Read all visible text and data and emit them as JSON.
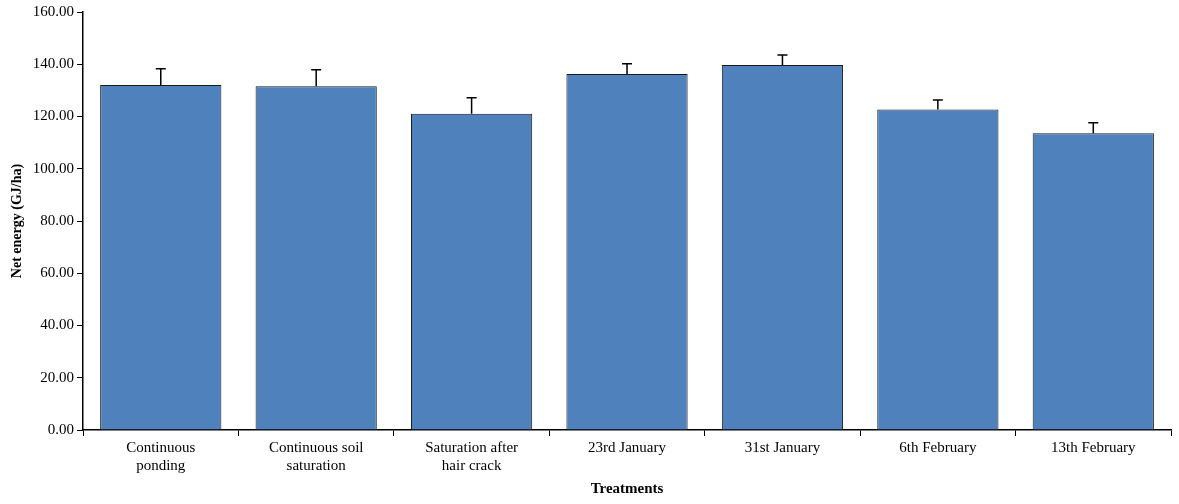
{
  "chart_data": {
    "type": "bar",
    "xlabel": "Treatments",
    "ylabel": "Net energy (GJ/ha)",
    "categories": [
      "Continuous ponding",
      "Continuous soil saturation",
      "Saturation after hair crack",
      "23rd January",
      "31st January",
      "6th February",
      "13th February"
    ],
    "values": [
      132.1,
      131.6,
      121.1,
      136.3,
      139.7,
      122.7,
      113.6
    ],
    "errors": [
      [
        132.1,
        138.3
      ],
      [
        131.6,
        137.9
      ],
      [
        121.1,
        127.2
      ],
      [
        136.3,
        140.2
      ],
      [
        139.7,
        143.5
      ],
      [
        122.7,
        126.3
      ],
      [
        113.6,
        117.6
      ]
    ],
    "color": "#4f81bd",
    "ylim": [
      0,
      160
    ],
    "yticks": [
      {
        "value": 0,
        "label": "0.00"
      },
      {
        "value": 20,
        "label": "20.00"
      },
      {
        "value": 40,
        "label": "40.00"
      },
      {
        "value": 60,
        "label": "60.00"
      },
      {
        "value": 80,
        "label": "80.00"
      },
      {
        "value": 100,
        "label": "100.00"
      },
      {
        "value": 120,
        "label": "120.00"
      },
      {
        "value": 140,
        "label": "140.00"
      },
      {
        "value": 160,
        "label": "160.00"
      }
    ],
    "grid": false,
    "legend": false
  }
}
